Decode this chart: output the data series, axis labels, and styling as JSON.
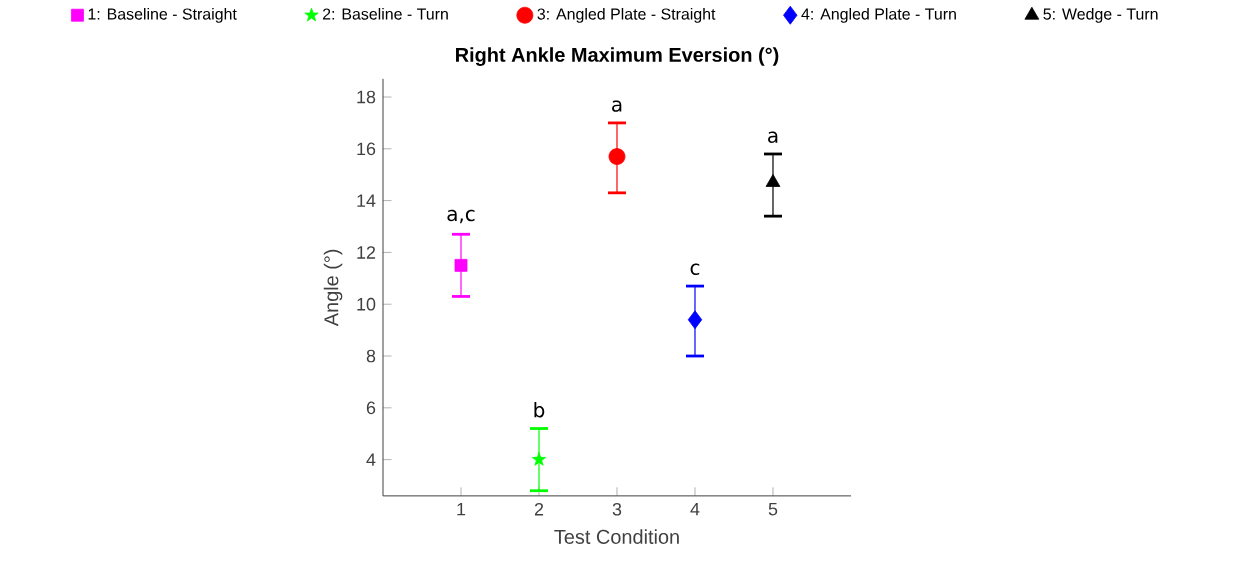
{
  "chart_data": {
    "type": "scatter",
    "title": "Right Ankle Maximum Eversion (°)",
    "xlabel": "Test Condition",
    "ylabel": "Angle (°)",
    "xlim": [
      0,
      6
    ],
    "xticks": [
      1,
      2,
      3,
      4,
      5
    ],
    "ylim": [
      2.6,
      18.7
    ],
    "yticks": [
      4,
      6,
      8,
      10,
      12,
      14,
      16,
      18
    ],
    "legend": "top",
    "series": [
      {
        "name": "1: Baseline - Straight",
        "color": "#ff00ff",
        "marker": "square",
        "x": [
          1
        ],
        "values": [
          11.5
        ],
        "errors": [
          [
            10.3,
            12.7
          ]
        ]
      },
      {
        "name": "2: Baseline - Turn",
        "color": "#00ff00",
        "marker": "star",
        "x": [
          2
        ],
        "values": [
          4.0
        ],
        "errors": [
          [
            2.8,
            5.2
          ]
        ]
      },
      {
        "name": "3: Angled Plate - Straight",
        "color": "#ff0000",
        "marker": "circle",
        "x": [
          3
        ],
        "values": [
          15.7
        ],
        "errors": [
          [
            14.3,
            17.0
          ]
        ]
      },
      {
        "name": "4: Angled Plate - Turn",
        "color": "#0000ff",
        "marker": "diamond",
        "x": [
          4
        ],
        "values": [
          9.4
        ],
        "errors": [
          [
            8.0,
            10.7
          ]
        ]
      },
      {
        "name": "5: Wedge - Turn",
        "color": "#000000",
        "marker": "triangle",
        "x": [
          5
        ],
        "values": [
          14.7
        ],
        "errors": [
          [
            13.4,
            15.8
          ]
        ]
      }
    ],
    "annotations": [
      "a,c",
      "b",
      "a",
      "c",
      "a"
    ]
  }
}
